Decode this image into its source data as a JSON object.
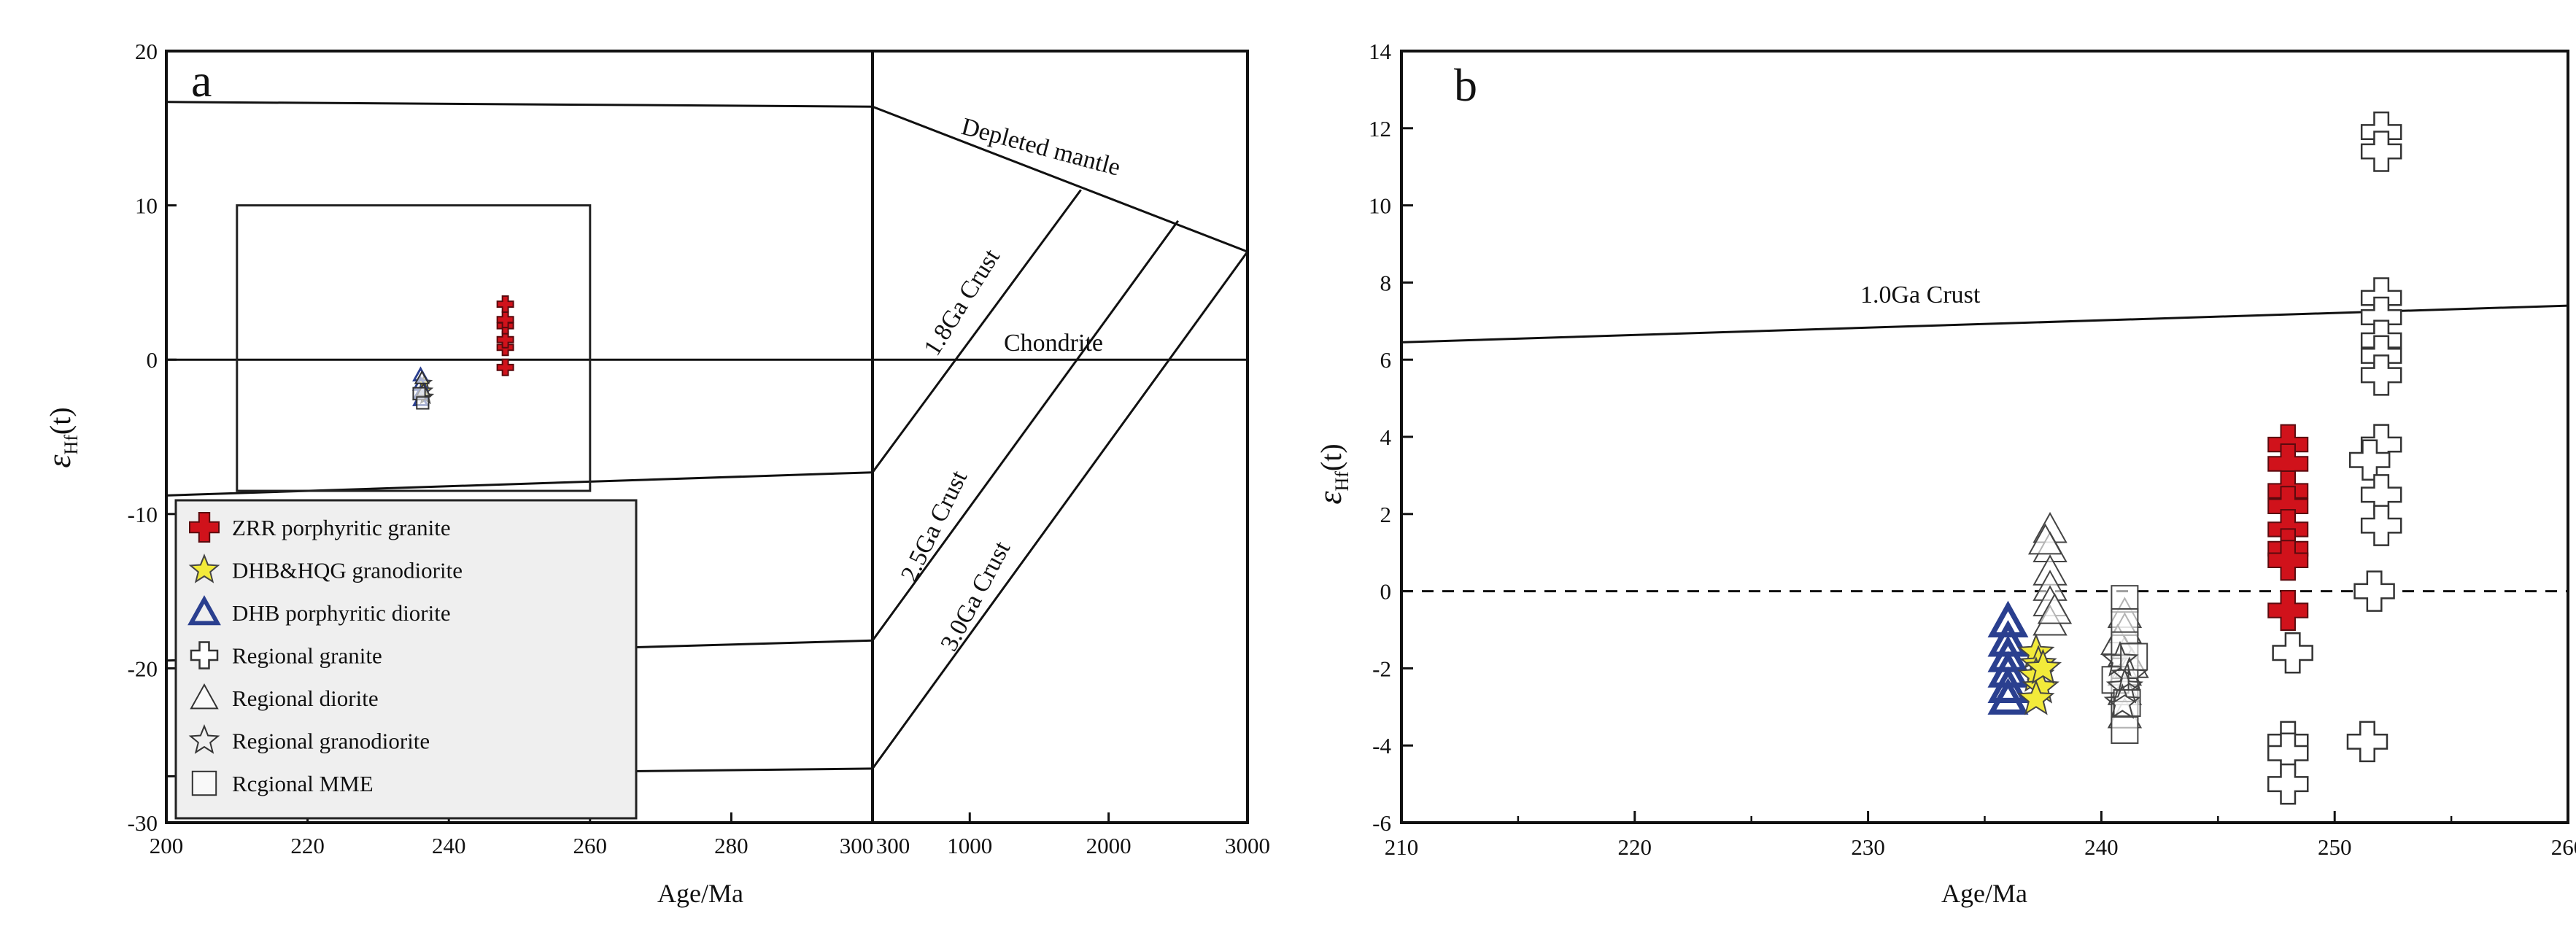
{
  "chart_data": [
    {
      "panel": "a",
      "type": "scatter",
      "panel_label": "a",
      "xlabel": "Age/Ma",
      "ylabel_main": "ε",
      "ylabel_sub": "Hf",
      "ylabel_suffix": "(t)",
      "x_segments": [
        {
          "range": [
            200,
            300
          ],
          "ticks": [
            200,
            220,
            240,
            260,
            280,
            300
          ]
        },
        {
          "range": [
            300,
            3000
          ],
          "ticks": [
            300,
            1000,
            2000,
            3000
          ]
        }
      ],
      "x_tick_labels": [
        "200",
        "220",
        "240",
        "260",
        "280",
        "300",
        "300",
        "1000",
        "2000",
        "3000"
      ],
      "ylim": [
        -30,
        20
      ],
      "y_ticks": [
        20,
        10,
        0,
        -10,
        -20,
        -30
      ],
      "y_tick_labels": [
        "20",
        "10",
        "0",
        "-10",
        "-20",
        "-30"
      ],
      "zoom_box": {
        "x": [
          210,
          260
        ],
        "y": [
          -8.5,
          10
        ]
      },
      "reference_lines": [
        {
          "label": "Depleted mantle",
          "points": [
            [
              200,
              16.7
            ],
            [
              300,
              16.4
            ],
            [
              3000,
              7
            ]
          ]
        },
        {
          "label": "Chondrite",
          "points": [
            [
              200,
              0
            ],
            [
              3000,
              0
            ]
          ]
        },
        {
          "label": "1.8Ga Crust",
          "points": [
            [
              300,
              -7.3
            ],
            [
              1800,
              11
            ]
          ]
        },
        {
          "label": "2.5Ga Crust",
          "points": [
            [
              300,
              -18.2
            ],
            [
              2500,
              9
            ]
          ]
        },
        {
          "label": "3.0Ga Crust",
          "points": [
            [
              300,
              -26.5
            ],
            [
              3000,
              7
            ]
          ]
        },
        {
          "label": "",
          "points": [
            [
              200,
              -8.8
            ],
            [
              300,
              -7.3
            ]
          ]
        },
        {
          "label": "",
          "points": [
            [
              200,
              -19.5
            ],
            [
              300,
              -18.2
            ]
          ]
        },
        {
          "label": "",
          "points": [
            [
              200,
              -27
            ],
            [
              300,
              -26.5
            ]
          ]
        }
      ],
      "series": [
        {
          "name": "ZRR porphyritic granite",
          "marker": "plus-filled",
          "color": "#d0121b",
          "points": [
            [
              248,
              -0.5
            ],
            [
              248,
              0.8
            ],
            [
              248,
              1.3
            ],
            [
              248,
              2.2
            ],
            [
              248,
              2.6
            ],
            [
              248,
              3.6
            ]
          ]
        },
        {
          "name": "DHB&HQG granodiorite",
          "marker": "star",
          "color": "#f2ea3a",
          "points": [
            [
              236.5,
              -1.5
            ],
            [
              236.6,
              -2.0
            ],
            [
              236.7,
              -2.4
            ]
          ]
        },
        {
          "name": "DHB porphyritic diorite",
          "marker": "triangle",
          "color": "#2a3f8f",
          "points": [
            [
              236,
              -1.0
            ],
            [
              236,
              -1.6
            ],
            [
              236,
              -2.2
            ],
            [
              236,
              -2.6
            ]
          ]
        },
        {
          "name": "Regional diorite",
          "marker": "triangle-open",
          "color": "#333333",
          "points": [
            [
              236.2,
              -1.2
            ],
            [
              236.4,
              -2.0
            ]
          ]
        },
        {
          "name": "Regional MME",
          "marker": "square-open",
          "color": "#333333",
          "points": [
            [
              235.8,
              -2.2
            ],
            [
              236.3,
              -2.8
            ]
          ]
        }
      ]
    },
    {
      "panel": "b",
      "type": "scatter",
      "panel_label": "b",
      "xlabel": "Age/Ma",
      "ylabel_main": "ε",
      "ylabel_sub": "Hf",
      "ylabel_suffix": "(t)",
      "xlim": [
        210,
        260
      ],
      "x_ticks": [
        210,
        220,
        230,
        240,
        250,
        260
      ],
      "x_tick_labels": [
        "210",
        "220",
        "230",
        "240",
        "250",
        "260"
      ],
      "ylim": [
        -6,
        14
      ],
      "y_ticks": [
        14,
        12,
        10,
        8,
        6,
        4,
        2,
        0,
        -2,
        -4,
        -6
      ],
      "y_tick_labels": [
        "14",
        "12",
        "10",
        "8",
        "6",
        "4",
        "2",
        "0",
        "-2",
        "-4",
        "-6"
      ],
      "reference_lines": [
        {
          "label": "1.0Ga Crust",
          "style": "solid",
          "points": [
            [
              210,
              6.45
            ],
            [
              260,
              7.4
            ]
          ]
        },
        {
          "label": "",
          "style": "dashed",
          "points": [
            [
              210,
              0
            ],
            [
              260,
              0
            ]
          ]
        }
      ],
      "series": [
        {
          "name": "Regional diorite",
          "marker": "triangle-open",
          "color": "#444444",
          "points": [
            [
              237.8,
              1.6
            ],
            [
              237.8,
              1.1
            ],
            [
              237.8,
              0.5
            ],
            [
              237.8,
              0.1
            ],
            [
              237.8,
              -0.3
            ],
            [
              237.8,
              -0.8
            ],
            [
              237.6,
              1.3
            ],
            [
              238.0,
              -0.5
            ],
            [
              241,
              -0.6
            ],
            [
              241,
              -1.0
            ],
            [
              241,
              -1.6
            ],
            [
              241,
              -2.1
            ],
            [
              240.7,
              -1.3
            ],
            [
              241.3,
              -1.9
            ],
            [
              241,
              -2.6
            ],
            [
              241,
              -3.2
            ]
          ]
        },
        {
          "name": "Regional MME",
          "marker": "square-open",
          "color": "#444444",
          "points": [
            [
              241,
              -0.2
            ],
            [
              241,
              -0.8
            ],
            [
              241,
              -1.4
            ],
            [
              241,
              -2.0
            ],
            [
              241,
              -2.6
            ],
            [
              241,
              -3.2
            ],
            [
              241,
              -3.6
            ],
            [
              240.6,
              -2.3
            ],
            [
              241.4,
              -1.7
            ],
            [
              241.1,
              -2.9
            ]
          ]
        },
        {
          "name": "Regional granodiorite",
          "marker": "star-open",
          "color": "#444444",
          "points": [
            [
              240.8,
              -1.8
            ],
            [
              241.2,
              -2.2
            ],
            [
              241,
              -2.5
            ],
            [
              240.9,
              -2.9
            ]
          ]
        },
        {
          "name": "DHB porphyritic diorite",
          "marker": "triangle",
          "color": "#2a3f8f",
          "points": [
            [
              236,
              -0.8
            ],
            [
              236,
              -1.3
            ],
            [
              236,
              -1.7
            ],
            [
              236,
              -2.1
            ],
            [
              236,
              -2.5
            ],
            [
              236,
              -2.8
            ]
          ]
        },
        {
          "name": "DHB&HQG granodiorite",
          "marker": "star",
          "color": "#f2ea3a",
          "points": [
            [
              237.2,
              -1.6
            ],
            [
              237.3,
              -1.9
            ],
            [
              237.2,
              -2.2
            ],
            [
              237.4,
              -2.5
            ],
            [
              237.2,
              -2.8
            ],
            [
              237.5,
              -2.0
            ]
          ]
        },
        {
          "name": "ZRR porphyritic granite",
          "marker": "plus-filled",
          "color": "#d0121b",
          "points": [
            [
              248,
              3.8
            ],
            [
              248,
              3.3
            ],
            [
              248,
              2.6
            ],
            [
              248,
              2.2
            ],
            [
              248,
              1.6
            ],
            [
              248,
              1.1
            ],
            [
              248,
              0.8
            ],
            [
              248,
              -0.5
            ]
          ]
        },
        {
          "name": "Regional granite",
          "marker": "plus-open",
          "color": "#333333",
          "points": [
            [
              252,
              11.9
            ],
            [
              252,
              11.4
            ],
            [
              252,
              7.6
            ],
            [
              252,
              7.1
            ],
            [
              252,
              6.5
            ],
            [
              252,
              6.1
            ],
            [
              252,
              5.6
            ],
            [
              252,
              3.8
            ],
            [
              251.5,
              3.4
            ],
            [
              252,
              2.5
            ],
            [
              252,
              1.7
            ],
            [
              251.7,
              0.0
            ],
            [
              251.4,
              -3.9
            ],
            [
              248.2,
              -1.6
            ],
            [
              248,
              -3.9
            ],
            [
              248,
              -4.2
            ],
            [
              248,
              -5.0
            ]
          ]
        }
      ]
    }
  ],
  "legend": {
    "items": [
      {
        "label": "ZRR porphyritic granite",
        "marker": "plus-filled",
        "color": "#d0121b"
      },
      {
        "label": "DHB&HQG granodiorite",
        "marker": "star",
        "color": "#f2ea3a"
      },
      {
        "label": "DHB porphyritic diorite",
        "marker": "triangle",
        "color": "#2a3f8f"
      },
      {
        "label": "Regional granite",
        "marker": "plus-open",
        "color": "#333333"
      },
      {
        "label": "Regional diorite",
        "marker": "triangle-open",
        "color": "#333333"
      },
      {
        "label": "Regional granodiorite",
        "marker": "star-open",
        "color": "#333333"
      },
      {
        "label": "Rcgional MME",
        "marker": "square-open",
        "color": "#333333"
      }
    ],
    "placement": "bottom-left of panel a",
    "background": "#efefef"
  }
}
